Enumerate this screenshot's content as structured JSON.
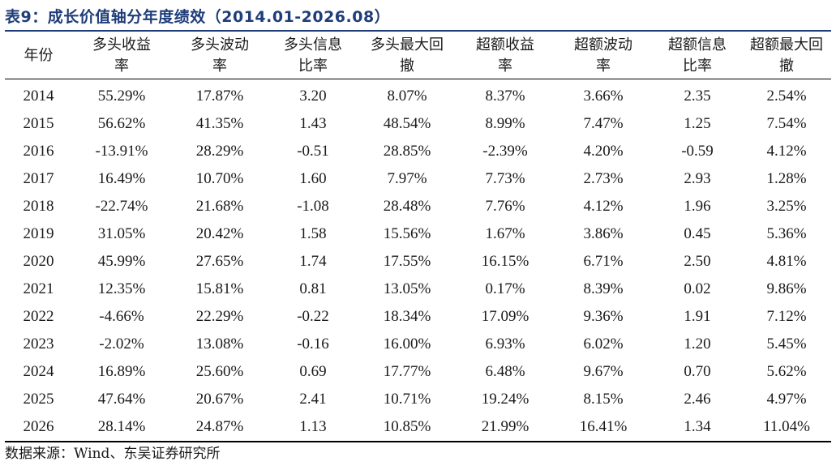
{
  "title": "表9：成长价值轴分年度绩效（2014.01-2026.08）",
  "headers": [
    [
      "年份"
    ],
    [
      "多头收益",
      "率"
    ],
    [
      "多头波动",
      "率"
    ],
    [
      "多头信息",
      "比率"
    ],
    [
      "多头最大回",
      "撤"
    ],
    [
      "超额收益",
      "率"
    ],
    [
      "超额波动",
      "率"
    ],
    [
      "超额信息",
      "比率"
    ],
    [
      "超额最大回",
      "撤"
    ]
  ],
  "rows": [
    [
      "2014",
      "55.29%",
      "17.87%",
      "3.20",
      "8.07%",
      "8.37%",
      "3.66%",
      "2.35",
      "2.54%"
    ],
    [
      "2015",
      "56.62%",
      "41.35%",
      "1.43",
      "48.54%",
      "8.99%",
      "7.47%",
      "1.25",
      "7.54%"
    ],
    [
      "2016",
      "-13.91%",
      "28.29%",
      "-0.51",
      "28.85%",
      "-2.39%",
      "4.20%",
      "-0.59",
      "4.12%"
    ],
    [
      "2017",
      "16.49%",
      "10.70%",
      "1.60",
      "7.97%",
      "7.73%",
      "2.73%",
      "2.93",
      "1.28%"
    ],
    [
      "2018",
      "-22.74%",
      "21.68%",
      "-1.08",
      "28.48%",
      "7.76%",
      "4.12%",
      "1.96",
      "3.25%"
    ],
    [
      "2019",
      "31.05%",
      "20.42%",
      "1.58",
      "15.56%",
      "1.67%",
      "3.86%",
      "0.45",
      "5.36%"
    ],
    [
      "2020",
      "45.99%",
      "27.65%",
      "1.74",
      "17.55%",
      "16.15%",
      "6.71%",
      "2.50",
      "4.81%"
    ],
    [
      "2021",
      "12.35%",
      "15.81%",
      "0.81",
      "13.05%",
      "0.17%",
      "8.39%",
      "0.02",
      "9.86%"
    ],
    [
      "2022",
      "-4.66%",
      "22.29%",
      "-0.22",
      "18.34%",
      "17.09%",
      "9.36%",
      "1.91",
      "7.12%"
    ],
    [
      "2023",
      "-2.02%",
      "13.08%",
      "-0.16",
      "16.00%",
      "6.93%",
      "6.02%",
      "1.20",
      "5.45%"
    ],
    [
      "2024",
      "16.89%",
      "25.60%",
      "0.69",
      "17.77%",
      "6.48%",
      "9.67%",
      "0.70",
      "5.62%"
    ],
    [
      "2025",
      "47.64%",
      "20.67%",
      "2.41",
      "10.71%",
      "19.24%",
      "8.15%",
      "2.46",
      "4.97%"
    ],
    [
      "2026",
      "28.14%",
      "24.87%",
      "1.13",
      "10.85%",
      "21.99%",
      "16.41%",
      "1.34",
      "11.04%"
    ]
  ],
  "source": "数据来源：Wind、东吴证券研究所",
  "colors": {
    "title": "#1f3d7a",
    "rule": "#000000"
  }
}
